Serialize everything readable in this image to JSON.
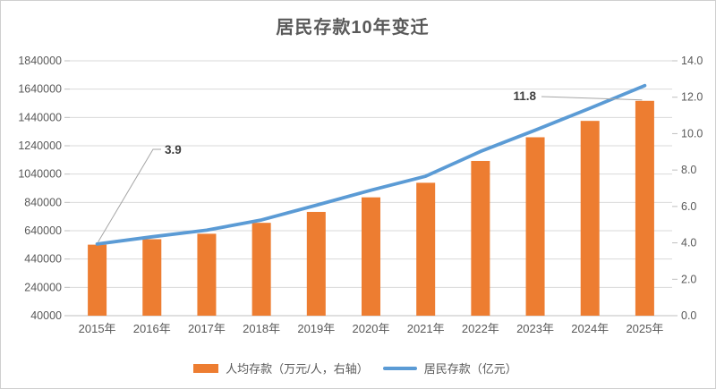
{
  "chart_data": {
    "type": "combo",
    "title": "居民存款10年变迁",
    "categories": [
      "2015年",
      "2016年",
      "2017年",
      "2018年",
      "2019年",
      "2020年",
      "2021年",
      "2022年",
      "2023年",
      "2024年",
      "2025年"
    ],
    "series": [
      {
        "name": "人均存款（万元/人，右轴）",
        "chart_type": "bar",
        "axis": "right",
        "color": "#ED7D31",
        "values": [
          3.9,
          4.2,
          4.5,
          5.1,
          5.7,
          6.5,
          7.3,
          8.5,
          9.8,
          10.7,
          11.8
        ]
      },
      {
        "name": "居民存款（亿元）",
        "chart_type": "line",
        "axis": "left",
        "color": "#5B9BD5",
        "values": [
          546000,
          597000,
          644000,
          716000,
          820000,
          926000,
          1025000,
          1200000,
          1350000,
          1505000,
          1665000
        ]
      }
    ],
    "left_axis": {
      "min": 40000,
      "max": 1840000,
      "step": 200000
    },
    "right_axis": {
      "min": 0,
      "max": 14,
      "step": 2
    },
    "annotations": [
      {
        "series": 0,
        "point": 0,
        "label": "3.9"
      },
      {
        "series": 0,
        "point": 10,
        "label": "11.8"
      }
    ],
    "grid": true,
    "legend_position": "bottom",
    "styles": {
      "grid_color": "#D9D9D9",
      "axis_color": "#BFBFBF",
      "label_color": "#595959",
      "annotation_color": "#404040",
      "leader_color": "#A6A6A6",
      "background": "#FFFFFF",
      "border": "#CFCFCF"
    }
  }
}
